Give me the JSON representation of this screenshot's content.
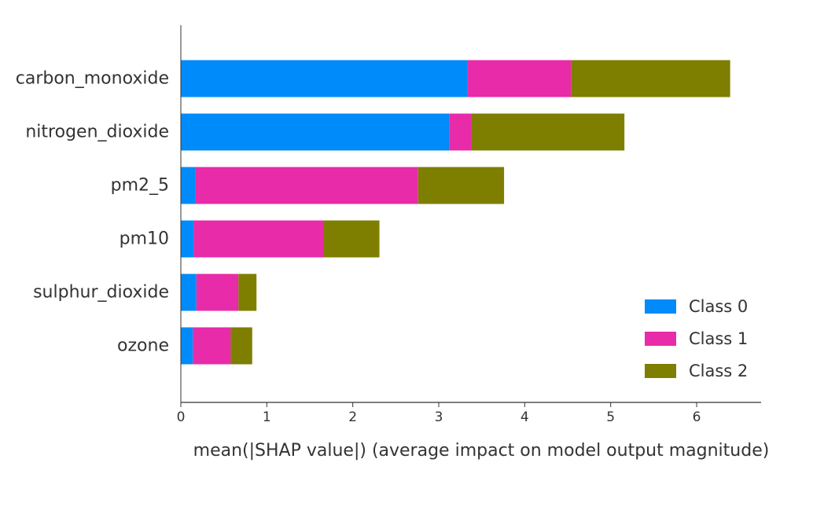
{
  "chart_data": {
    "type": "bar",
    "orientation": "horizontal",
    "stacked": true,
    "title": "",
    "xlabel": "mean(|SHAP value|) (average impact on model output magnitude)",
    "ylabel": "",
    "xlim": [
      0,
      6.75
    ],
    "xticks": [
      "0",
      "1",
      "2",
      "3",
      "4",
      "5",
      "6"
    ],
    "categories": [
      "carbon_monoxide",
      "nitrogen_dioxide",
      "pm2_5",
      "pm10",
      "sulphur_dioxide",
      "ozone"
    ],
    "series": [
      {
        "name": "Class 0",
        "color": "#008bfb",
        "values": [
          3.33,
          3.12,
          0.17,
          0.15,
          0.18,
          0.14
        ]
      },
      {
        "name": "Class 1",
        "color": "#e82ba8",
        "values": [
          1.21,
          0.26,
          2.59,
          1.51,
          0.49,
          0.44
        ]
      },
      {
        "name": "Class 2",
        "color": "#7e7e00",
        "values": [
          1.85,
          1.78,
          1.0,
          0.65,
          0.21,
          0.25
        ]
      }
    ],
    "grid": false,
    "legend_position": "lower right"
  }
}
